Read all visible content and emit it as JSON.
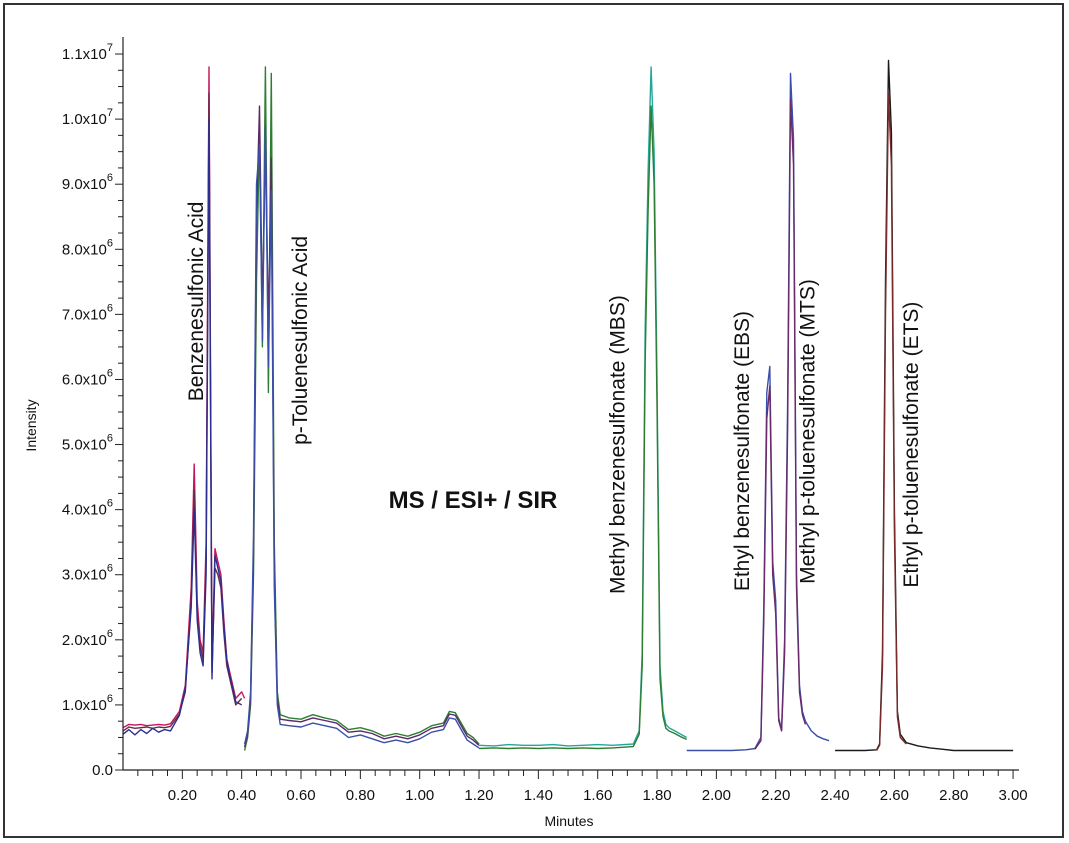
{
  "chart_data": {
    "type": "line",
    "title": "MS / ESI+ / SIR",
    "xlabel": "Minutes",
    "ylabel": "Intensity",
    "xlim": [
      0.0,
      3.02
    ],
    "ylim": [
      0,
      11200000
    ],
    "grid": false,
    "legend": "none",
    "x_ticks": [
      {
        "value": 0.2,
        "label": "0.20"
      },
      {
        "value": 0.4,
        "label": "0.40"
      },
      {
        "value": 0.6,
        "label": "0.60"
      },
      {
        "value": 0.8,
        "label": "0.80"
      },
      {
        "value": 1.0,
        "label": "1.00"
      },
      {
        "value": 1.2,
        "label": "1.20"
      },
      {
        "value": 1.4,
        "label": "1.40"
      },
      {
        "value": 1.6,
        "label": "1.60"
      },
      {
        "value": 1.8,
        "label": "1.80"
      },
      {
        "value": 2.0,
        "label": "2.00"
      },
      {
        "value": 2.2,
        "label": "2.20"
      },
      {
        "value": 2.4,
        "label": "2.40"
      },
      {
        "value": 2.6,
        "label": "2.60"
      },
      {
        "value": 2.8,
        "label": "2.80"
      },
      {
        "value": 3.0,
        "label": "3.00"
      }
    ],
    "y_ticks": [
      {
        "value": 0,
        "mant": "0.0",
        "exp": ""
      },
      {
        "value": 1000000,
        "mant": "1.0x10",
        "exp": "6"
      },
      {
        "value": 2000000,
        "mant": "2.0x10",
        "exp": "6"
      },
      {
        "value": 3000000,
        "mant": "3.0x10",
        "exp": "6"
      },
      {
        "value": 4000000,
        "mant": "4.0x10",
        "exp": "6"
      },
      {
        "value": 5000000,
        "mant": "5.0x10",
        "exp": "6"
      },
      {
        "value": 6000000,
        "mant": "6.0x10",
        "exp": "6"
      },
      {
        "value": 7000000,
        "mant": "7.0x10",
        "exp": "6"
      },
      {
        "value": 8000000,
        "mant": "8.0x10",
        "exp": "6"
      },
      {
        "value": 9000000,
        "mant": "9.0x10",
        "exp": "6"
      },
      {
        "value": 10000000,
        "mant": "1.0x10",
        "exp": "7"
      },
      {
        "value": 11000000,
        "mant": "1.1x10",
        "exp": "7"
      }
    ],
    "annotations": [
      {
        "text": "Benzenesulfonic Acid",
        "x": 0.27,
        "y": 7200000
      },
      {
        "text": "p-Toluenesulfonic Acid",
        "x": 0.62,
        "y": 6600000
      },
      {
        "text": "Methyl benzenesulfonate (MBS)",
        "x": 1.69,
        "y": 5000000
      },
      {
        "text": "Ethyl benzenesulfonate (EBS)",
        "x": 2.11,
        "y": 4900000
      },
      {
        "text": "Methyl p-toluenesulfonate (MTS)",
        "x": 2.33,
        "y": 5200000
      },
      {
        "text": "Ethyl p-toluenesulfonate (ETS)",
        "x": 2.68,
        "y": 5000000
      }
    ],
    "series": [
      {
        "color": "#c2185b",
        "x": [
          0.0,
          0.02,
          0.04,
          0.06,
          0.08,
          0.1,
          0.12,
          0.14,
          0.16,
          0.19,
          0.21,
          0.23,
          0.24,
          0.25,
          0.26,
          0.27,
          0.28,
          0.29,
          0.3,
          0.31,
          0.32,
          0.33,
          0.34,
          0.35,
          0.36,
          0.37,
          0.38,
          0.4,
          0.41
        ],
        "y": [
          650000,
          700000,
          690000,
          700000,
          680000,
          690000,
          700000,
          690000,
          710000,
          900000,
          1300000,
          2800000,
          4700000,
          2600000,
          2000000,
          1800000,
          3500000,
          10800000,
          1600000,
          3400000,
          3200000,
          3000000,
          2300000,
          1700000,
          1500000,
          1300000,
          1100000,
          1200000,
          1100000
        ]
      },
      {
        "color": "#6b2a4a",
        "x": [
          0.0,
          0.02,
          0.04,
          0.06,
          0.08,
          0.1,
          0.12,
          0.14,
          0.16,
          0.19,
          0.21,
          0.23,
          0.24,
          0.25,
          0.26,
          0.27,
          0.28,
          0.29,
          0.3,
          0.31,
          0.32,
          0.33,
          0.34,
          0.35,
          0.36,
          0.37,
          0.38,
          0.4
        ],
        "y": [
          600000,
          660000,
          640000,
          650000,
          660000,
          640000,
          660000,
          650000,
          670000,
          860000,
          1200000,
          2600000,
          4300000,
          2400000,
          1900000,
          1700000,
          3200000,
          10400000,
          1500000,
          3100000,
          3000000,
          2800000,
          2100000,
          1600000,
          1400000,
          1200000,
          1000000,
          1100000
        ]
      },
      {
        "color": "#2a2f8f",
        "x": [
          0.0,
          0.02,
          0.04,
          0.06,
          0.08,
          0.1,
          0.12,
          0.14,
          0.16,
          0.19,
          0.21,
          0.23,
          0.24,
          0.25,
          0.26,
          0.27,
          0.28,
          0.29,
          0.3,
          0.31,
          0.32,
          0.33,
          0.34,
          0.35,
          0.36,
          0.37,
          0.38,
          0.4
        ],
        "y": [
          550000,
          620000,
          540000,
          620000,
          560000,
          640000,
          580000,
          620000,
          600000,
          840000,
          1250000,
          2500000,
          4000000,
          2300000,
          1800000,
          1600000,
          3000000,
          10000000,
          1400000,
          3300000,
          3100000,
          2900000,
          2200000,
          1700000,
          1450000,
          1250000,
          1050000,
          1000000
        ]
      },
      {
        "color": "#2e7d32",
        "x": [
          0.41,
          0.42,
          0.43,
          0.44,
          0.45,
          0.46,
          0.47,
          0.48,
          0.49,
          0.5,
          0.51,
          0.52,
          0.53,
          0.56,
          0.6,
          0.64,
          0.68,
          0.72,
          0.76,
          0.8,
          0.84,
          0.88,
          0.92,
          0.96,
          1.0,
          1.04,
          1.08,
          1.1,
          1.12,
          1.14,
          1.16,
          1.18,
          1.2
        ],
        "y": [
          300000,
          500000,
          1000000,
          3000000,
          7500000,
          9800000,
          6500000,
          10800000,
          5800000,
          10700000,
          3500000,
          1200000,
          850000,
          800000,
          780000,
          850000,
          800000,
          760000,
          620000,
          650000,
          600000,
          520000,
          560000,
          520000,
          580000,
          680000,
          720000,
          900000,
          880000,
          720000,
          560000,
          500000,
          400000
        ]
      },
      {
        "color": "#5b2a6a",
        "x": [
          0.41,
          0.42,
          0.43,
          0.44,
          0.45,
          0.46,
          0.47,
          0.48,
          0.49,
          0.5,
          0.51,
          0.52,
          0.53,
          0.56,
          0.6,
          0.64,
          0.68,
          0.72,
          0.76,
          0.8,
          0.84,
          0.88,
          0.92,
          0.96,
          1.0,
          1.04,
          1.08,
          1.1,
          1.12,
          1.14,
          1.16,
          1.18,
          1.2
        ],
        "y": [
          350000,
          550000,
          1100000,
          3300000,
          8500000,
          10200000,
          7000000,
          9700000,
          6800000,
          9400000,
          3000000,
          1100000,
          780000,
          760000,
          740000,
          800000,
          760000,
          720000,
          580000,
          600000,
          560000,
          480000,
          520000,
          480000,
          540000,
          640000,
          680000,
          860000,
          840000,
          680000,
          520000,
          460000,
          380000
        ]
      },
      {
        "color": "#3a4fa8",
        "x": [
          0.41,
          0.42,
          0.43,
          0.44,
          0.45,
          0.46,
          0.47,
          0.48,
          0.49,
          0.5,
          0.51,
          0.52,
          0.53,
          0.56,
          0.6,
          0.64,
          0.68,
          0.72,
          0.76,
          0.8,
          0.84,
          0.88,
          0.92,
          0.96,
          1.0,
          1.04,
          1.08,
          1.1,
          1.12,
          1.14,
          1.16,
          1.18,
          1.2
        ],
        "y": [
          400000,
          600000,
          1200000,
          3600000,
          9000000,
          9600000,
          6600000,
          9900000,
          6200000,
          8900000,
          2800000,
          1000000,
          700000,
          680000,
          660000,
          720000,
          680000,
          640000,
          500000,
          540000,
          480000,
          420000,
          460000,
          420000,
          480000,
          580000,
          620000,
          800000,
          780000,
          620000,
          460000,
          400000,
          340000
        ]
      },
      {
        "color": "#26a69a",
        "x": [
          1.2,
          1.25,
          1.3,
          1.35,
          1.4,
          1.45,
          1.5,
          1.55,
          1.6,
          1.65,
          1.72,
          1.74,
          1.75,
          1.76,
          1.77,
          1.78,
          1.79,
          1.8,
          1.81,
          1.82,
          1.83,
          1.84,
          1.86,
          1.88,
          1.9
        ],
        "y": [
          380000,
          370000,
          390000,
          380000,
          380000,
          390000,
          370000,
          380000,
          390000,
          380000,
          400000,
          600000,
          1800000,
          6800000,
          9200000,
          10800000,
          9500000,
          6000000,
          1600000,
          900000,
          700000,
          650000,
          600000,
          550000,
          500000
        ]
      },
      {
        "color": "#2e7d32",
        "x": [
          1.2,
          1.25,
          1.3,
          1.35,
          1.4,
          1.45,
          1.5,
          1.55,
          1.6,
          1.65,
          1.72,
          1.74,
          1.75,
          1.76,
          1.77,
          1.78,
          1.79,
          1.8,
          1.81,
          1.82,
          1.83,
          1.84,
          1.86,
          1.88,
          1.9
        ],
        "y": [
          330000,
          340000,
          330000,
          340000,
          330000,
          340000,
          330000,
          340000,
          330000,
          340000,
          360000,
          550000,
          1600000,
          6300000,
          8600000,
          10200000,
          9000000,
          5600000,
          1400000,
          820000,
          640000,
          600000,
          560000,
          510000,
          470000
        ]
      },
      {
        "color": "#3a4fa8",
        "x": [
          1.9,
          1.95,
          2.0,
          2.05,
          2.1,
          2.13,
          2.15,
          2.16,
          2.17,
          2.18,
          2.19,
          2.2,
          2.21,
          2.22,
          2.23,
          2.24,
          2.25,
          2.26,
          2.27,
          2.28,
          2.29,
          2.3,
          2.32,
          2.34,
          2.36,
          2.38
        ],
        "y": [
          300000,
          300000,
          300000,
          300000,
          310000,
          330000,
          500000,
          2500000,
          5800000,
          6200000,
          3200000,
          2600000,
          800000,
          620000,
          2000000,
          5600000,
          10700000,
          9700000,
          3000000,
          1300000,
          900000,
          750000,
          600000,
          520000,
          480000,
          450000
        ]
      },
      {
        "color": "#6b2a6a",
        "x": [
          2.13,
          2.15,
          2.16,
          2.17,
          2.18,
          2.19,
          2.2,
          2.21,
          2.22,
          2.23,
          2.24,
          2.25,
          2.26,
          2.27,
          2.28,
          2.29,
          2.3
        ],
        "y": [
          320000,
          450000,
          2300000,
          5400000,
          5900000,
          3000000,
          2400000,
          760000,
          600000,
          1800000,
          5200000,
          10300000,
          9300000,
          2800000,
          1200000,
          850000,
          700000
        ]
      },
      {
        "color": "#1a1a1a",
        "x": [
          2.4,
          2.45,
          2.5,
          2.54,
          2.55,
          2.56,
          2.57,
          2.58,
          2.59,
          2.6,
          2.61,
          2.62,
          2.64,
          2.68,
          2.72,
          2.76,
          2.8,
          2.9,
          3.0
        ],
        "y": [
          300000,
          300000,
          300000,
          310000,
          400000,
          1800000,
          7500000,
          10900000,
          9800000,
          4000000,
          900000,
          550000,
          420000,
          370000,
          340000,
          320000,
          300000,
          300000,
          300000
        ]
      },
      {
        "color": "#7a2a2a",
        "x": [
          2.54,
          2.55,
          2.56,
          2.57,
          2.58,
          2.59,
          2.6,
          2.61,
          2.62,
          2.64
        ],
        "y": [
          300000,
          380000,
          1600000,
          7000000,
          10400000,
          9300000,
          3700000,
          820000,
          500000,
          400000
        ]
      }
    ]
  }
}
